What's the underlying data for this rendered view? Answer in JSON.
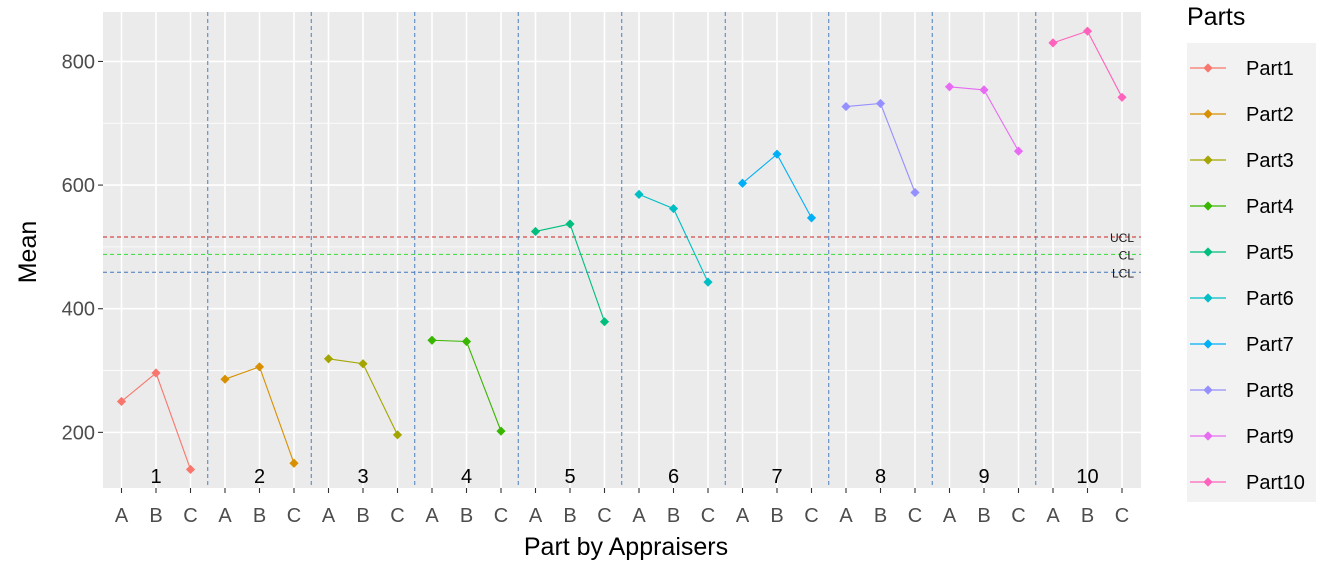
{
  "chart_data": {
    "type": "line",
    "title": "",
    "xlabel": "Part by Appraisers",
    "ylabel": "Mean",
    "ylim": [
      110,
      880
    ],
    "y_ticks": [
      200,
      400,
      600,
      800
    ],
    "appraisers": [
      "A",
      "B",
      "C"
    ],
    "groups": [
      "1",
      "2",
      "3",
      "4",
      "5",
      "6",
      "7",
      "8",
      "9",
      "10"
    ],
    "grid": true,
    "legend": {
      "title": "Parts",
      "position": "right"
    },
    "control_limits": [
      {
        "label": "UCL",
        "value": 516,
        "color": "#cc2222"
      },
      {
        "label": "CL",
        "value": 488,
        "color": "#33dd33"
      },
      {
        "label": "LCL",
        "value": 459,
        "color": "#4477bb"
      }
    ],
    "series": [
      {
        "name": "Part1",
        "color": "#F8766D",
        "values": [
          250,
          296,
          140
        ]
      },
      {
        "name": "Part2",
        "color": "#D89000",
        "values": [
          286,
          306,
          150
        ]
      },
      {
        "name": "Part3",
        "color": "#A3A500",
        "values": [
          319,
          311,
          196
        ]
      },
      {
        "name": "Part4",
        "color": "#39B600",
        "values": [
          349,
          347,
          202
        ]
      },
      {
        "name": "Part5",
        "color": "#00BF7D",
        "values": [
          525,
          537,
          379
        ]
      },
      {
        "name": "Part6",
        "color": "#00BFC4",
        "values": [
          585,
          562,
          443
        ]
      },
      {
        "name": "Part7",
        "color": "#00B0F6",
        "values": [
          603,
          650,
          547
        ]
      },
      {
        "name": "Part8",
        "color": "#9590FF",
        "values": [
          727,
          732,
          588
        ]
      },
      {
        "name": "Part9",
        "color": "#E76BF3",
        "values": [
          759,
          754,
          655
        ]
      },
      {
        "name": "Part10",
        "color": "#FF62BC",
        "values": [
          830,
          849,
          742
        ]
      }
    ]
  }
}
